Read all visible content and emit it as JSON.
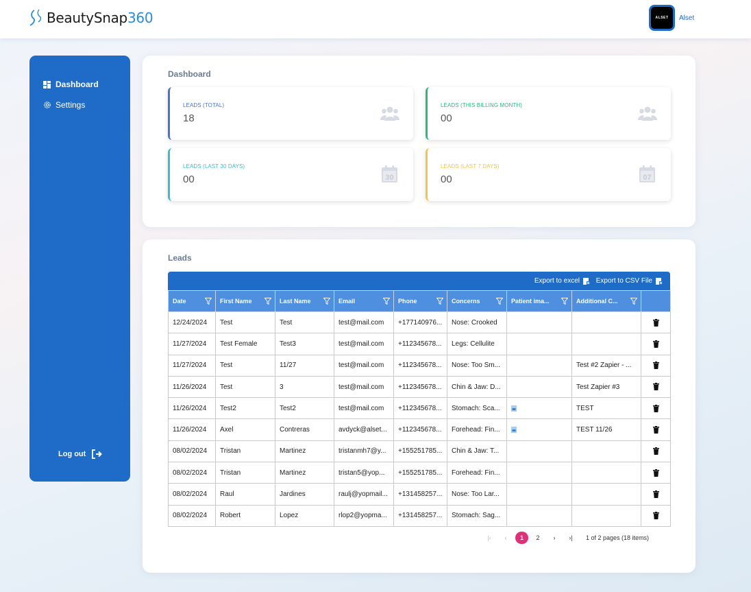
{
  "header": {
    "logo_text": "BeautySnap",
    "logo_number": "360",
    "avatar_text": "ALSET",
    "username": "Alset"
  },
  "sidebar": {
    "items": [
      {
        "label": "Dashboard",
        "icon": "dashboard-grid-icon"
      },
      {
        "label": "Settings",
        "icon": "gear-icon"
      }
    ],
    "logout_label": "Log out"
  },
  "dashboard": {
    "title": "Dashboard",
    "cards": [
      {
        "label": "LEADS (TOTAL)",
        "value": "18",
        "icon": "users-icon",
        "color": "#4a74c9"
      },
      {
        "label": "LEADS (THIS BILLING MONTH)",
        "value": "00",
        "icon": "users-icon",
        "color": "#2db77f"
      },
      {
        "label": "LEADS (LAST 30 DAYS)",
        "value": "00",
        "icon": "calendar-30-icon",
        "calendar_text": "30",
        "color": "#3fbbc9"
      },
      {
        "label": "LEADS (LAST 7 DAYS)",
        "value": "00",
        "icon": "calendar-07-icon",
        "calendar_text": "07",
        "color": "#f2c44a"
      }
    ]
  },
  "leads": {
    "title": "Leads",
    "export_excel": "Export to excel",
    "export_csv": "Export to CSV File",
    "columns": [
      "Date",
      "First Name",
      "Last Name",
      "Email",
      "Phone",
      "Concerns",
      "Patient ima...",
      "Additional C..."
    ],
    "rows": [
      [
        "12/24/2024",
        "Test",
        "Test",
        "test@mail.com",
        "+177140976...",
        "Nose: Crooked",
        "",
        ""
      ],
      [
        "11/27/2024",
        "Test Female",
        "Test3",
        "test@mail.com",
        "+112345678...",
        "Legs: Cellulite",
        "",
        ""
      ],
      [
        "11/27/2024",
        "Test",
        "11/27",
        "test@mail.com",
        "+112345678...",
        "Nose: Too Sm...",
        "",
        "Test #2 Zapier - ..."
      ],
      [
        "11/26/2024",
        "Test",
        "3",
        "test@mail.com",
        "+112345678...",
        "Chin & Jaw: D...",
        "",
        "Test Zapier #3"
      ],
      [
        "11/26/2024",
        "Test2",
        "Test2",
        "test@mail.com",
        "+112345678...",
        "Stomach: Sca...",
        "file",
        "TEST"
      ],
      [
        "11/26/2024",
        "Axel",
        "Contreras",
        "avdyck@alset...",
        "+112345678...",
        "Forehead: Fin...",
        "file",
        "TEST 11/26"
      ],
      [
        "08/02/2024",
        "Tristan",
        "Martinez",
        "tristanmh7@y...",
        "+155251785...",
        "Chin & Jaw: T...",
        "",
        ""
      ],
      [
        "08/02/2024",
        "Tristan",
        "Martinez",
        "tristan5@yop...",
        "+155251785...",
        "Forehead: Fin...",
        "",
        ""
      ],
      [
        "08/02/2024",
        "Raul",
        "Jardines",
        "raulj@yopmail...",
        "+131458257...",
        "Nose: Too Lar...",
        "",
        ""
      ],
      [
        "08/02/2024",
        "Robert",
        "Lopez",
        "rlop2@yopma...",
        "+131458257...",
        "Stomach: Sag...",
        "",
        ""
      ]
    ],
    "pagination": {
      "pages": [
        "1",
        "2"
      ],
      "current_page": "1",
      "info": "1 of 2 pages (18 items)"
    }
  },
  "colors": {
    "brand_blue": "#1f6cc8",
    "header_blue": "#4e8fe0",
    "active_page": "#e0307a"
  }
}
